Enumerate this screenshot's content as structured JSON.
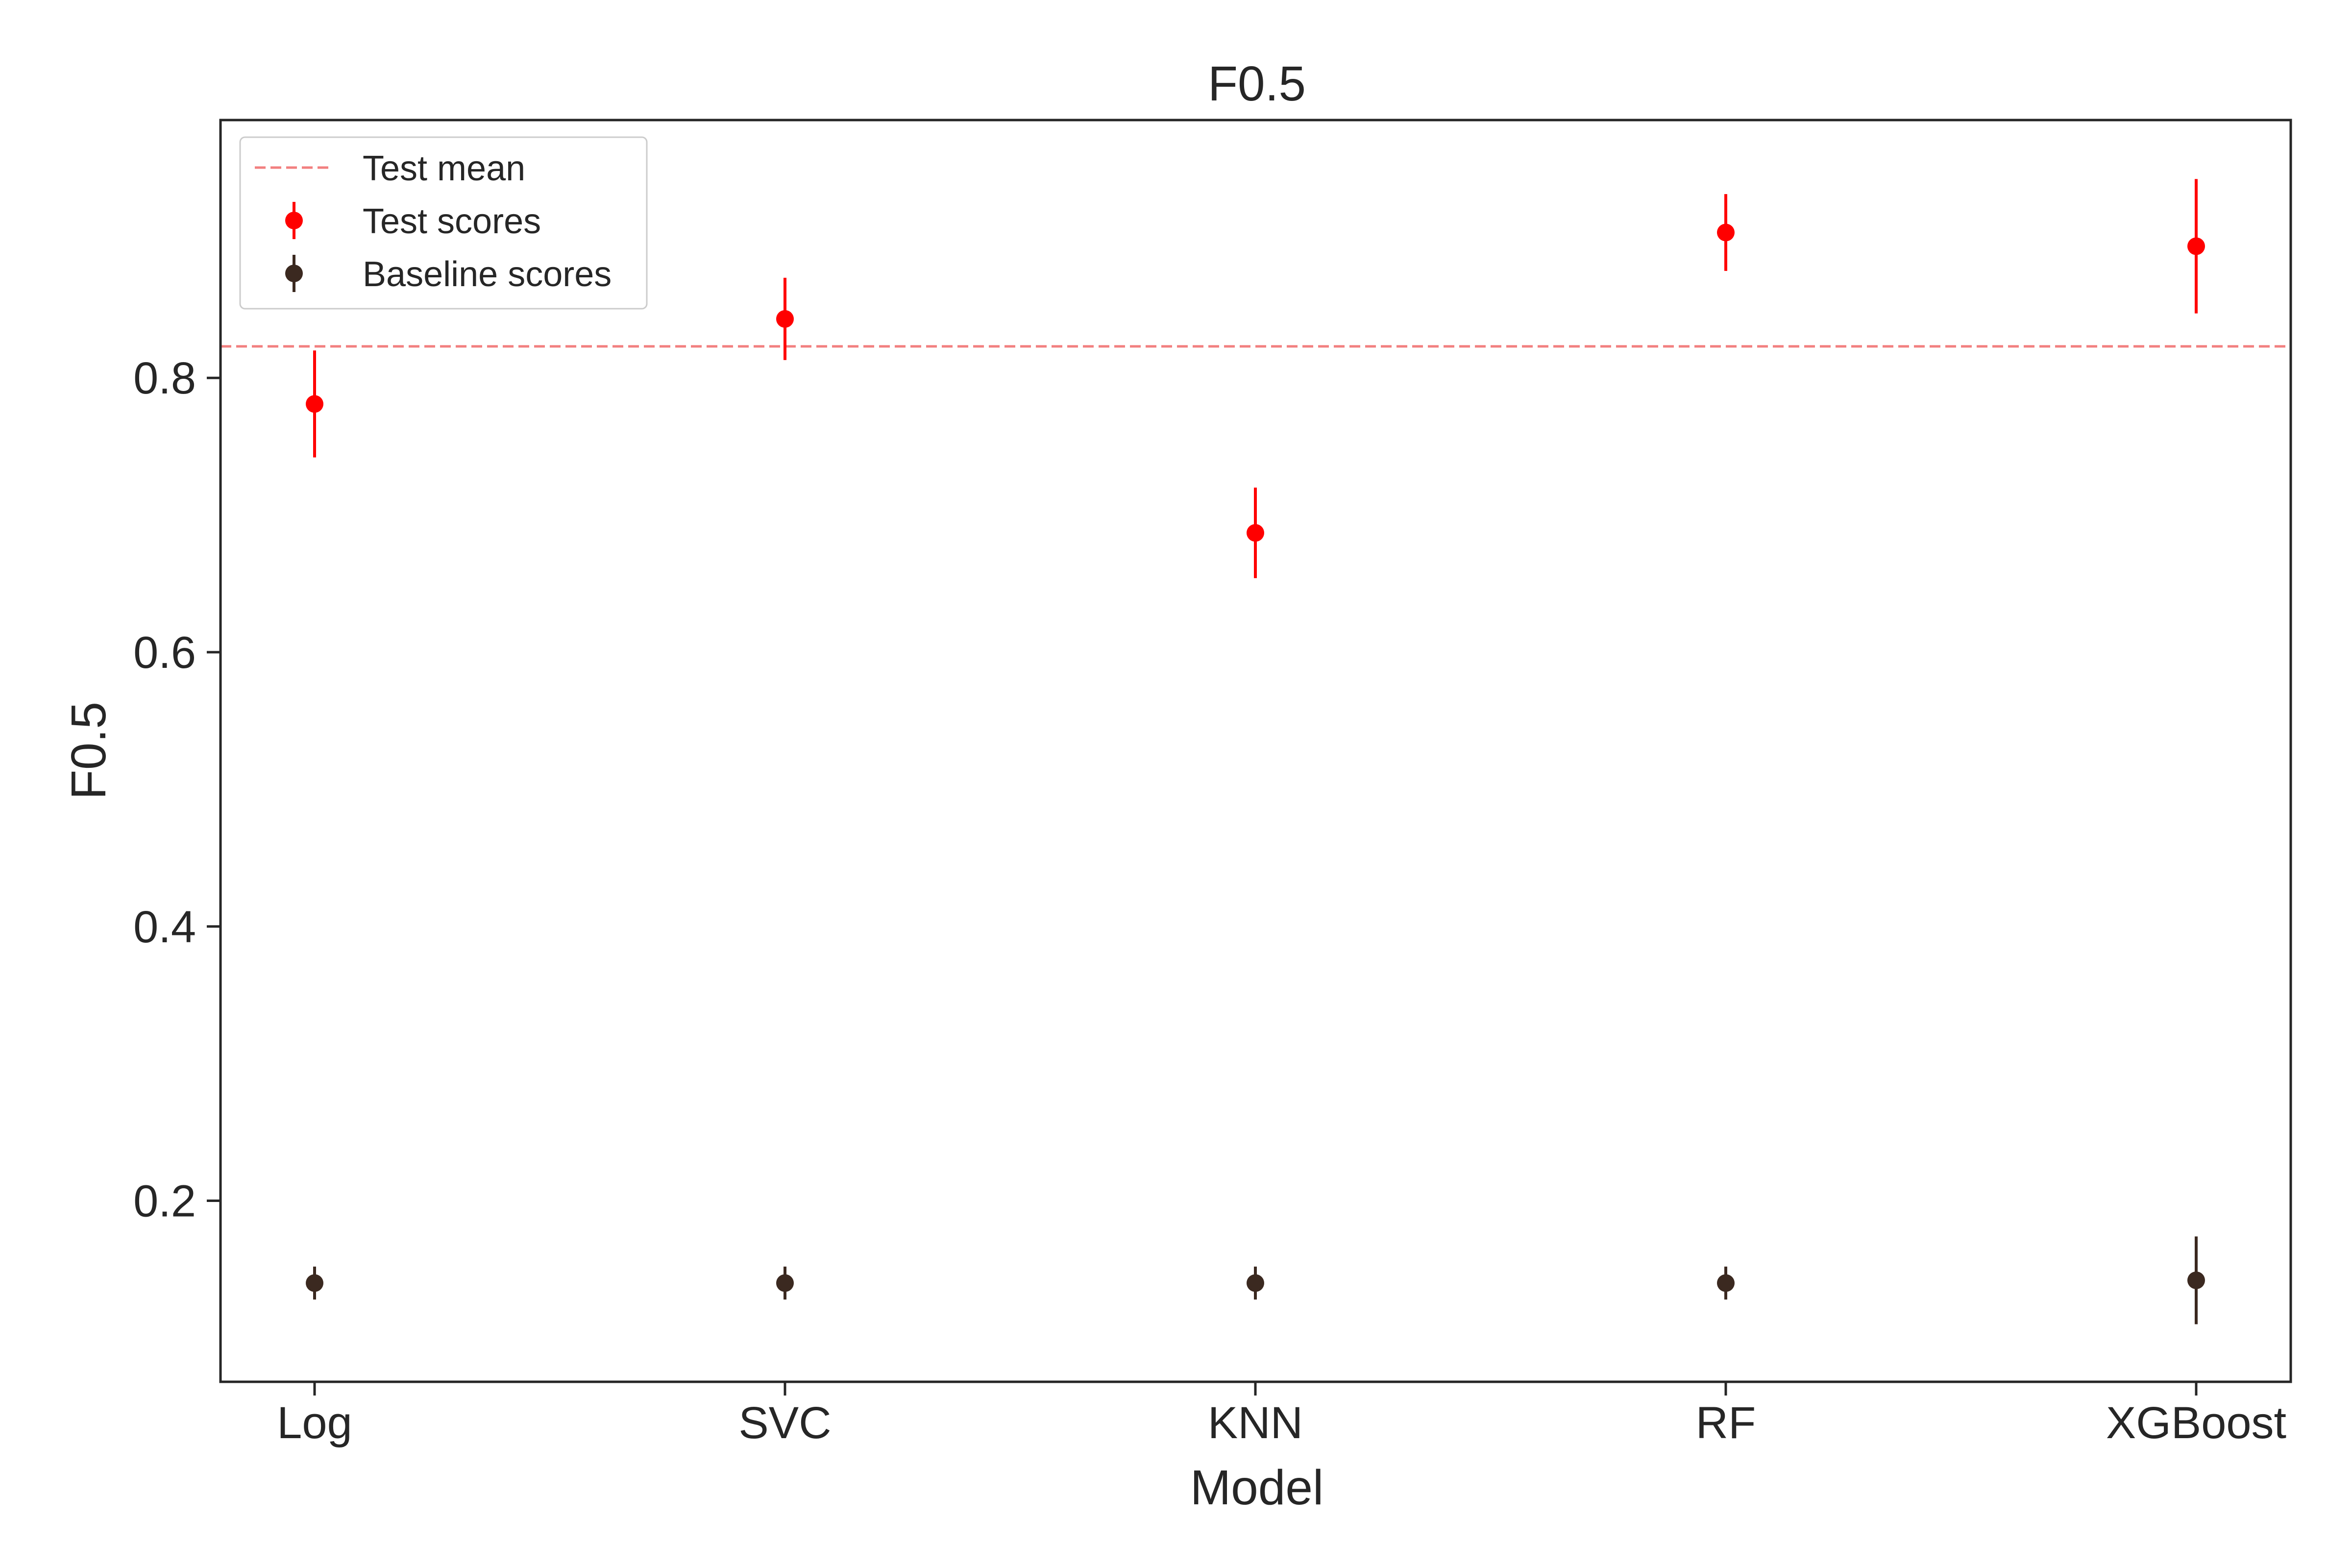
{
  "chart_data": {
    "type": "scatter",
    "title": "F0.5",
    "xlabel": "Model",
    "ylabel": "F0.5",
    "categories": [
      "Log",
      "SVC",
      "KNN",
      "RF",
      "XGBoost"
    ],
    "ylim": [
      0.068,
      0.988
    ],
    "yticks": [
      0.2,
      0.4,
      0.6,
      0.8
    ],
    "ytick_labels": [
      "0.2",
      "0.4",
      "0.6",
      "0.8"
    ],
    "grid": false,
    "legend_position": "top-left",
    "legend": [
      "Test mean",
      "Test scores",
      "Baseline scores"
    ],
    "series": [
      {
        "name": "Test scores",
        "color": "#ff0000",
        "values": [
          0.781,
          0.843,
          0.687,
          0.906,
          0.896
        ],
        "errors": [
          0.039,
          0.03,
          0.033,
          0.028,
          0.049
        ]
      },
      {
        "name": "Baseline scores",
        "color": "#3b2920",
        "values": [
          0.14,
          0.14,
          0.14,
          0.14,
          0.142
        ],
        "errors": [
          0.012,
          0.012,
          0.012,
          0.012,
          0.032
        ]
      }
    ],
    "reference_lines": [
      {
        "name": "Test mean",
        "y": 0.823,
        "color": "#f28080",
        "style": "dashed"
      }
    ]
  }
}
